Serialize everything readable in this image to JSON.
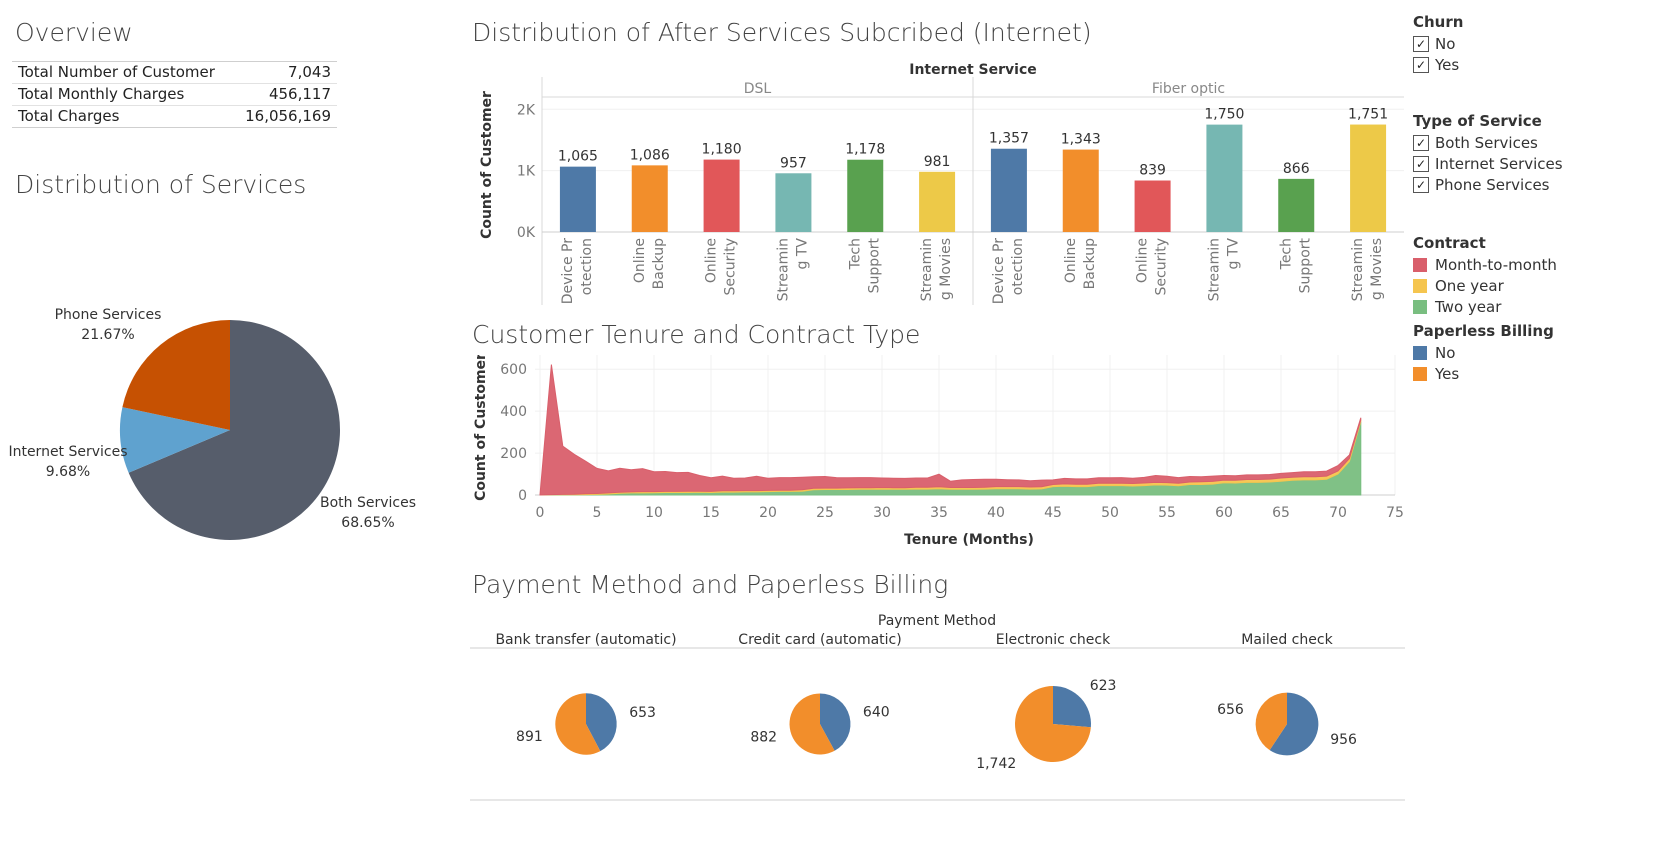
{
  "overview": {
    "title": "Overview",
    "rows": [
      {
        "label": "Total Number of Customer",
        "value": "7,043"
      },
      {
        "label": "Total Monthly Charges",
        "value": "456,117"
      },
      {
        "label": "Total Charges",
        "value": "16,056,169"
      }
    ]
  },
  "titles": {
    "services": "Distribution of Services",
    "internet": "Distribution of After Services Subcribed (Internet)",
    "tenure": "Customer Tenure and Contract Type",
    "payment": "Payment Method and Paperless Billing"
  },
  "legends": {
    "churn": {
      "title": "Churn",
      "items": [
        "No",
        "Yes"
      ]
    },
    "service_type": {
      "title": "Type of Service",
      "items": [
        "Both Services",
        "Internet Services",
        "Phone Services"
      ]
    },
    "contract": {
      "title": "Contract",
      "items": [
        {
          "label": "Month-to-month",
          "color": "#d95f6b"
        },
        {
          "label": "One year",
          "color": "#f5c54f"
        },
        {
          "label": "Two year",
          "color": "#79be80"
        }
      ]
    },
    "paperless": {
      "title": "Paperless Billing",
      "items": [
        {
          "label": "No",
          "color": "#4e79a7"
        },
        {
          "label": "Yes",
          "color": "#f28e2b"
        }
      ]
    }
  },
  "chart_data": [
    {
      "id": "services_pie",
      "type": "pie",
      "slices": [
        {
          "label": "Both Services",
          "pct_label": "68.65%",
          "value": 68.65,
          "color": "#565d6b"
        },
        {
          "label": "Internet Services",
          "pct_label": "9.68%",
          "value": 9.68,
          "color": "#5fa2cf"
        },
        {
          "label": "Phone Services",
          "pct_label": "21.67%",
          "value": 21.67,
          "color": "#c65102"
        }
      ]
    },
    {
      "id": "internet_bars",
      "type": "bar",
      "header": "Internet Service",
      "ylabel": "Count of Customer",
      "yticks": [
        {
          "v": 0,
          "label": "0K"
        },
        {
          "v": 1000,
          "label": "1K"
        },
        {
          "v": 2000,
          "label": "2K"
        }
      ],
      "ylim": [
        0,
        2200
      ],
      "categories": [
        "Device Pr otection",
        "Online Backup",
        "Online Security",
        "Streamin g TV",
        "Tech Support",
        "Streamin g Movies"
      ],
      "category_lines": [
        [
          "Device Pr",
          "otection"
        ],
        [
          "Online",
          "Backup"
        ],
        [
          "Online",
          "Security"
        ],
        [
          "Streamin",
          "g TV"
        ],
        [
          "Tech",
          "Support"
        ],
        [
          "Streamin",
          "g Movies"
        ]
      ],
      "colors": [
        "#4e79a7",
        "#f28e2b",
        "#e15759",
        "#76b7b2",
        "#59a14f",
        "#edc948"
      ],
      "panels": [
        {
          "name": "DSL",
          "values": [
            1065,
            1086,
            1180,
            957,
            1178,
            981
          ],
          "labels": [
            "1,065",
            "1,086",
            "1,180",
            "957",
            "1,178",
            "981"
          ]
        },
        {
          "name": "Fiber optic",
          "values": [
            1357,
            1343,
            839,
            1750,
            866,
            1751
          ],
          "labels": [
            "1,357",
            "1,343",
            "839",
            "1,750",
            "866",
            "1,751"
          ]
        }
      ]
    },
    {
      "id": "tenure_area",
      "type": "area",
      "xlabel": "Tenure (Months)",
      "ylabel": "Count of Customer",
      "xlim": [
        0,
        75
      ],
      "ylim": [
        0,
        620
      ],
      "xticks": [
        0,
        5,
        10,
        15,
        20,
        25,
        30,
        35,
        40,
        45,
        50,
        55,
        60,
        65,
        70,
        75
      ],
      "yticks": [
        0,
        200,
        400,
        600
      ],
      "x": [
        0,
        1,
        2,
        3,
        4,
        5,
        6,
        7,
        8,
        9,
        10,
        11,
        12,
        13,
        14,
        15,
        16,
        17,
        18,
        19,
        20,
        21,
        22,
        23,
        24,
        25,
        26,
        27,
        28,
        29,
        30,
        31,
        32,
        33,
        34,
        35,
        36,
        37,
        38,
        39,
        40,
        41,
        42,
        43,
        44,
        45,
        46,
        47,
        48,
        49,
        50,
        51,
        52,
        53,
        54,
        55,
        56,
        57,
        58,
        59,
        60,
        61,
        62,
        63,
        64,
        65,
        66,
        67,
        68,
        69,
        70,
        71,
        72
      ],
      "series": [
        {
          "name": "Two year",
          "color": "#79be80",
          "values": [
            0,
            1,
            1,
            1,
            2,
            3,
            5,
            8,
            10,
            10,
            11,
            12,
            12,
            12,
            13,
            12,
            14,
            14,
            15,
            15,
            16,
            17,
            17,
            18,
            25,
            26,
            26,
            26,
            27,
            27,
            28,
            27,
            27,
            28,
            28,
            30,
            27,
            27,
            27,
            28,
            30,
            30,
            30,
            28,
            29,
            40,
            42,
            40,
            40,
            45,
            45,
            45,
            43,
            45,
            48,
            47,
            44,
            50,
            50,
            52,
            58,
            57,
            60,
            60,
            62,
            66,
            70,
            72,
            72,
            75,
            100,
            160,
            350
          ]
        },
        {
          "name": "One year",
          "color": "#f5c54f",
          "values": [
            0,
            1,
            2,
            3,
            4,
            4,
            5,
            5,
            5,
            6,
            5,
            5,
            5,
            6,
            5,
            5,
            6,
            6,
            6,
            6,
            6,
            6,
            6,
            7,
            7,
            7,
            7,
            8,
            8,
            8,
            8,
            8,
            8,
            9,
            9,
            9,
            9,
            9,
            9,
            9,
            10,
            10,
            10,
            10,
            10,
            10,
            11,
            11,
            11,
            11,
            11,
            11,
            12,
            12,
            12,
            12,
            12,
            12,
            13,
            13,
            13,
            13,
            14,
            14,
            14,
            15,
            15,
            15,
            15,
            15,
            15,
            14,
            8
          ]
        },
        {
          "name": "Month-to-month",
          "color": "#d95f6b",
          "values": [
            2,
            620,
            230,
            190,
            155,
            120,
            105,
            115,
            105,
            110,
            95,
            95,
            90,
            90,
            75,
            65,
            70,
            60,
            60,
            68,
            58,
            60,
            60,
            60,
            55,
            55,
            50,
            48,
            48,
            48,
            45,
            45,
            44,
            44,
            44,
            60,
            30,
            36,
            38,
            38,
            35,
            33,
            32,
            30,
            32,
            22,
            26,
            26,
            26,
            26,
            26,
            27,
            25,
            27,
            33,
            30,
            27,
            26,
            24,
            25,
            22,
            22,
            22,
            22,
            22,
            22,
            22,
            24,
            24,
            24,
            25,
            17,
            10
          ]
        }
      ]
    },
    {
      "id": "payment_pies",
      "type": "pie",
      "header": "Payment Method",
      "series_order": [
        "No",
        "Yes"
      ],
      "colors": {
        "No": "#4e79a7",
        "Yes": "#f28e2b"
      },
      "groups": [
        {
          "name": "Bank transfer (automatic)",
          "no": 653,
          "yes": 891,
          "no_label": "653",
          "yes_label": "891"
        },
        {
          "name": "Credit card (automatic)",
          "no": 640,
          "yes": 882,
          "no_label": "640",
          "yes_label": "882"
        },
        {
          "name": "Electronic check",
          "no": 623,
          "yes": 1742,
          "no_label": "623",
          "yes_label": "1,742"
        },
        {
          "name": "Mailed check",
          "no": 956,
          "yes": 656,
          "no_label": "956",
          "yes_label": "656"
        }
      ]
    }
  ]
}
